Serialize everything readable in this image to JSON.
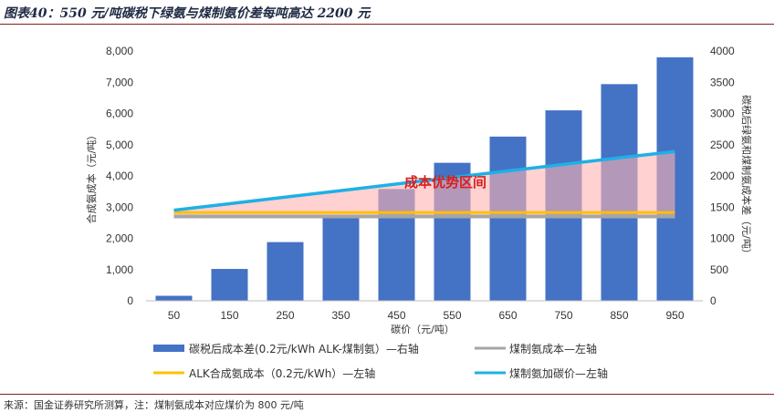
{
  "figure": {
    "title": "图表40：550 元/吨碳税下绿氨与煤制氨价差每吨高达 2200 元",
    "footer": "来源：国金证券研究所测算，注：煤制氨成本对应煤价为 800 元/吨"
  },
  "colors": {
    "bars": "#4472c4",
    "coal_ammonia_line": "#a6a6a6",
    "alk_line": "#ffc000",
    "coal_plus_carbon_line": "#1eb0e6",
    "advantage_area": "#ffb3b3",
    "annotation": "#d81e1e"
  },
  "chart_data": {
    "type": "bar",
    "categories": [
      "50",
      "150",
      "250",
      "350",
      "450",
      "550",
      "650",
      "750",
      "850",
      "950"
    ],
    "xlabel": "碳价（元/吨）",
    "ylabel_left": "合成氨成本（元/吨）",
    "ylabel_right": "碳税后绿氨和煤制氨成本差（元/吨）",
    "left_axis": {
      "min": 0,
      "max": 8000,
      "ticks": [
        "0",
        "1,000",
        "2,000",
        "3,000",
        "4,000",
        "5,000",
        "6,000",
        "7,000",
        "8,000"
      ]
    },
    "right_axis": {
      "min": 0,
      "max": 4000,
      "ticks": [
        "0",
        "500",
        "1000",
        "1500",
        "2000",
        "2500",
        "3000",
        "3500",
        "4000"
      ]
    },
    "series": [
      {
        "name": "碳税后成本差(0.2元/kWh ALK-煤制氨）—右轴",
        "type": "bar",
        "axis": "right",
        "values": [
          80,
          510,
          940,
          1370,
          1790,
          2210,
          2630,
          3050,
          3470,
          3900
        ]
      },
      {
        "name": "煤制氨成本—左轴",
        "type": "line",
        "axis": "left",
        "values": [
          2700,
          2700,
          2700,
          2700,
          2700,
          2700,
          2700,
          2700,
          2700,
          2700
        ]
      },
      {
        "name": "ALK合成氨成本（0.2元/kWh）—左轴",
        "type": "line",
        "axis": "left",
        "values": [
          2830,
          2830,
          2830,
          2830,
          2830,
          2830,
          2830,
          2830,
          2830,
          2830
        ]
      },
      {
        "name": "煤制氨加碳价—左轴",
        "type": "line",
        "axis": "left",
        "values": [
          2900,
          3110,
          3320,
          3530,
          3740,
          3950,
          4160,
          4370,
          4580,
          4780
        ]
      }
    ],
    "annotation": "成本优势区间",
    "legend_position": "bottom"
  }
}
